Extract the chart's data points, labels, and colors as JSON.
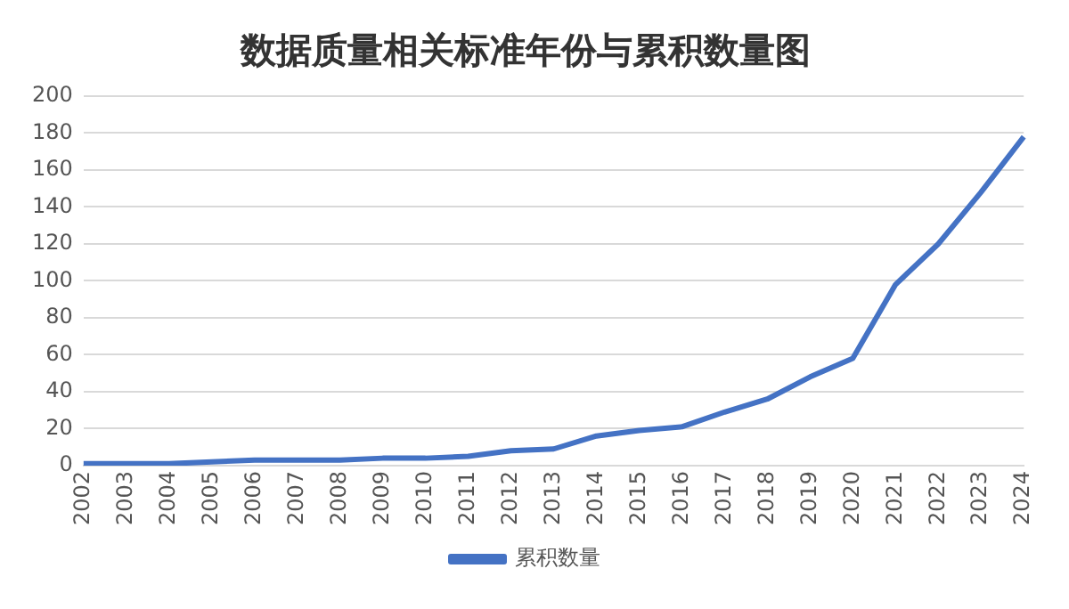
{
  "chart_data": {
    "type": "line",
    "title": "数据质量相关标准年份与累积数量图",
    "categories": [
      "2002",
      "2003",
      "2004",
      "2005",
      "2006",
      "2007",
      "2008",
      "2009",
      "2010",
      "2011",
      "2012",
      "2013",
      "2014",
      "2015",
      "2016",
      "2017",
      "2018",
      "2019",
      "2020",
      "2021",
      "2022",
      "2023",
      "2024"
    ],
    "series": [
      {
        "name": "累积数量",
        "color": "#4472c4",
        "values": [
          1,
          1,
          1,
          2,
          3,
          3,
          3,
          4,
          4,
          5,
          8,
          9,
          16,
          19,
          21,
          29,
          36,
          48,
          58,
          98,
          120,
          148,
          178
        ]
      }
    ],
    "ylim": [
      0,
      200
    ],
    "yticks": [
      0,
      20,
      40,
      60,
      80,
      100,
      120,
      140,
      160,
      180,
      200
    ],
    "grid": "y",
    "legend": "bottom",
    "marker": "none",
    "line_style": "solid"
  }
}
